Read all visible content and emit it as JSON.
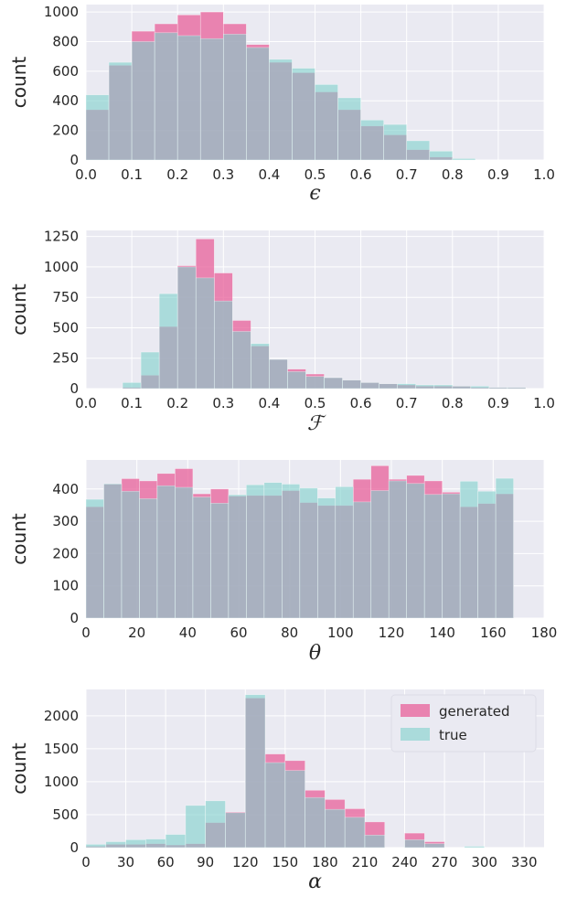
{
  "colors": {
    "generated": "#e8609a",
    "true": "#7fd1cc",
    "background": "#eaeaf2",
    "grid": "#ffffff"
  },
  "chart_data": [
    {
      "type": "bar",
      "xlabel": "ϵ",
      "ylabel": "count",
      "xlim": [
        0.0,
        1.0
      ],
      "ylim": [
        0,
        1050
      ],
      "xticks": [
        "0.0",
        "0.1",
        "0.2",
        "0.3",
        "0.4",
        "0.5",
        "0.6",
        "0.7",
        "0.8",
        "0.9",
        "1.0"
      ],
      "yticks": [
        "0",
        "200",
        "400",
        "600",
        "800",
        "1000"
      ],
      "bin_edges": [
        0,
        0.05,
        0.1,
        0.15,
        0.2,
        0.25,
        0.3,
        0.35,
        0.4,
        0.45,
        0.5,
        0.55,
        0.6,
        0.65,
        0.7,
        0.75,
        0.8,
        0.85,
        0.9,
        0.95,
        1.0
      ],
      "series": [
        {
          "name": "generated",
          "values": [
            340,
            640,
            870,
            920,
            980,
            1000,
            920,
            780,
            660,
            590,
            460,
            340,
            230,
            170,
            70,
            20,
            0,
            0,
            0,
            0
          ]
        },
        {
          "name": "true",
          "values": [
            440,
            660,
            800,
            860,
            840,
            820,
            850,
            760,
            680,
            620,
            510,
            420,
            270,
            240,
            130,
            60,
            10,
            0,
            0,
            0
          ]
        }
      ]
    },
    {
      "type": "bar",
      "xlabel": "ℱ",
      "ylabel": "count",
      "xlim": [
        0.0,
        1.0
      ],
      "ylim": [
        0,
        1300
      ],
      "xticks": [
        "0.0",
        "0.1",
        "0.2",
        "0.3",
        "0.4",
        "0.5",
        "0.6",
        "0.7",
        "0.8",
        "0.9",
        "1.0"
      ],
      "yticks": [
        "0",
        "250",
        "500",
        "750",
        "1000",
        "1250"
      ],
      "bin_edges": [
        0.04,
        0.08,
        0.12,
        0.16,
        0.2,
        0.24,
        0.28,
        0.32,
        0.36,
        0.4,
        0.44,
        0.48,
        0.52,
        0.56,
        0.6,
        0.64,
        0.68,
        0.72,
        0.76,
        0.8,
        0.84,
        0.88,
        0.92,
        0.96
      ],
      "series": [
        {
          "name": "generated",
          "values": [
            0,
            10,
            110,
            510,
            1010,
            1230,
            950,
            560,
            350,
            240,
            160,
            120,
            90,
            70,
            50,
            40,
            30,
            20,
            20,
            20,
            10,
            10,
            10
          ]
        },
        {
          "name": "true",
          "values": [
            0,
            50,
            300,
            780,
            1000,
            910,
            720,
            470,
            370,
            240,
            140,
            100,
            90,
            70,
            50,
            40,
            40,
            30,
            30,
            20,
            20,
            10,
            10
          ]
        }
      ]
    },
    {
      "type": "bar",
      "xlabel": "θ",
      "ylabel": "count",
      "xlim": [
        0,
        180
      ],
      "ylim": [
        0,
        490
      ],
      "xticks": [
        "0",
        "20",
        "40",
        "60",
        "80",
        "100",
        "120",
        "140",
        "160",
        "180"
      ],
      "yticks": [
        "0",
        "100",
        "200",
        "300",
        "400"
      ],
      "bin_edges": [
        0,
        7,
        14,
        21,
        28,
        35,
        42,
        49,
        56,
        63,
        70,
        77,
        84,
        91,
        98,
        105,
        112,
        119,
        126,
        133,
        140,
        147,
        154,
        161,
        168,
        175
      ],
      "series": [
        {
          "name": "generated",
          "values": [
            345,
            415,
            432,
            425,
            448,
            463,
            385,
            400,
            378,
            380,
            380,
            395,
            358,
            349,
            349,
            430,
            472,
            430,
            442,
            425,
            390,
            345,
            355,
            385,
            0
          ]
        },
        {
          "name": "true",
          "values": [
            368,
            416,
            393,
            370,
            410,
            405,
            375,
            356,
            382,
            413,
            420,
            415,
            403,
            372,
            407,
            360,
            395,
            425,
            417,
            383,
            385,
            424,
            393,
            433,
            0
          ]
        }
      ]
    },
    {
      "type": "bar",
      "xlabel": "α",
      "ylabel": "count",
      "xlim": [
        0,
        345
      ],
      "ylim": [
        0,
        2400
      ],
      "xticks": [
        "0",
        "30",
        "60",
        "90",
        "120",
        "150",
        "180",
        "210",
        "240",
        "270",
        "300",
        "330"
      ],
      "yticks": [
        "0",
        "500",
        "1000",
        "1500",
        "2000"
      ],
      "legend": {
        "position": "top-right",
        "entries": [
          "generated",
          "true"
        ]
      },
      "bin_edges": [
        0,
        15,
        30,
        45,
        60,
        75,
        90,
        105,
        120,
        135,
        150,
        165,
        180,
        195,
        210,
        225,
        240,
        255,
        270,
        285,
        300,
        315,
        330
      ],
      "series": [
        {
          "name": "generated",
          "values": [
            20,
            50,
            50,
            60,
            40,
            60,
            380,
            540,
            2270,
            1420,
            1320,
            870,
            730,
            590,
            390,
            0,
            220,
            90,
            0,
            0,
            0,
            0
          ]
        },
        {
          "name": "true",
          "values": [
            50,
            90,
            120,
            130,
            200,
            640,
            710,
            530,
            2320,
            1290,
            1170,
            760,
            580,
            460,
            190,
            0,
            120,
            60,
            0,
            20,
            0,
            0
          ]
        }
      ]
    }
  ]
}
